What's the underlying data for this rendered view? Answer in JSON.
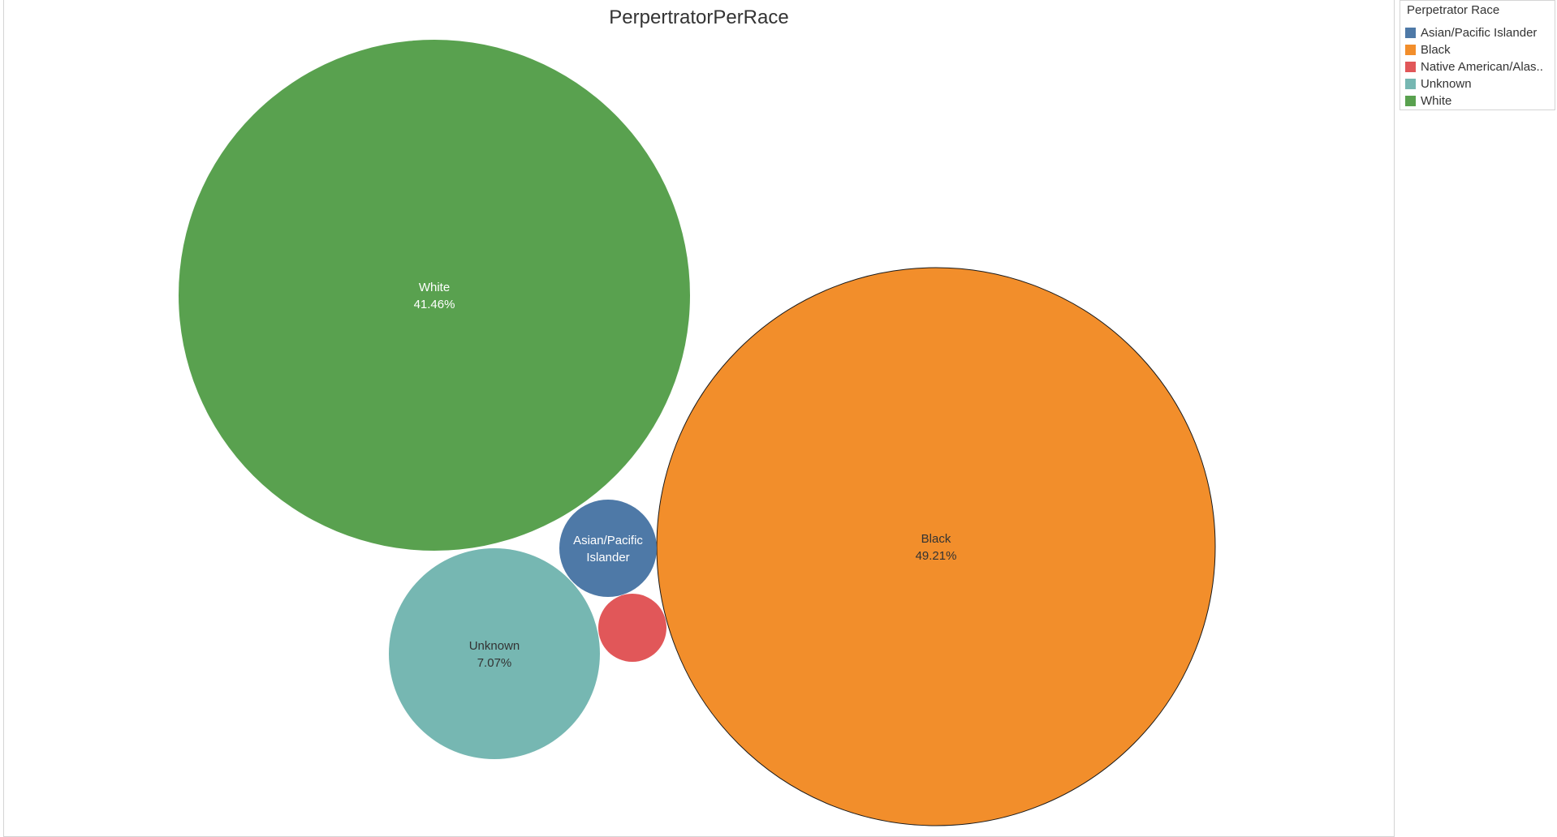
{
  "chart_data": {
    "type": "bubble",
    "title": "PerpertratorPerRace",
    "legend": {
      "title": "Perpetrator Race",
      "position": "top-right",
      "items": [
        {
          "label": "Asian/Pacific Islander",
          "color": "#4e79a7"
        },
        {
          "label": "Black",
          "color": "#f28e2b"
        },
        {
          "label": "Native American/Alas..",
          "color": "#e15759"
        },
        {
          "label": "Unknown",
          "color": "#76b7b2"
        },
        {
          "label": "White",
          "color": "#59a14f"
        }
      ]
    },
    "series": [
      {
        "category": "White",
        "percent": 41.46,
        "label_lines": [
          "White",
          "41.46%"
        ],
        "color": "#59a14f",
        "label_color": "#ffffff"
      },
      {
        "category": "Black",
        "percent": 49.21,
        "label_lines": [
          "Black",
          "49.21%"
        ],
        "color": "#f28e2b",
        "label_color": "#333333"
      },
      {
        "category": "Unknown",
        "percent": 7.07,
        "label_lines": [
          "Unknown",
          "7.07%"
        ],
        "color": "#76b7b2",
        "label_color": "#333333"
      },
      {
        "category": "Asian/Pacific Islander",
        "percent": null,
        "label_lines": [
          "Asian/Pacific",
          "Islander"
        ],
        "color": "#4e79a7",
        "label_color": "#ffffff"
      },
      {
        "category": "Native American/Alaska Native",
        "percent": null,
        "label_lines": [],
        "color": "#e15759",
        "label_color": "#ffffff"
      }
    ]
  }
}
